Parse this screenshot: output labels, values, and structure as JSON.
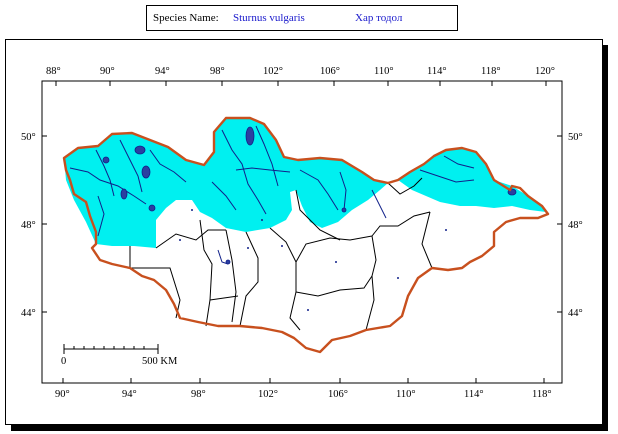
{
  "header": {
    "species_label": "Species Name:",
    "species_value": "Sturnus vulgaris",
    "local_name": "Хар тодол"
  },
  "map": {
    "top_lon_labels": [
      "88°",
      "90°",
      "94°",
      "98°",
      "102°",
      "106°",
      "110°",
      "114°",
      "118°",
      "120°"
    ],
    "bottom_lon_labels": [
      "90°",
      "94°",
      "98°",
      "102°",
      "106°",
      "110°",
      "114°",
      "118°"
    ],
    "left_lat_labels": [
      "50°",
      "48°",
      "44°"
    ],
    "right_lat_labels": [
      "50°",
      "48°",
      "44°"
    ],
    "scale_start": "0",
    "scale_end": "500 KM"
  },
  "colors": {
    "range_fill": "#00f0f0",
    "border": "#c8501e",
    "lakes": "#2b3fa0",
    "rivers": "#10208a"
  }
}
